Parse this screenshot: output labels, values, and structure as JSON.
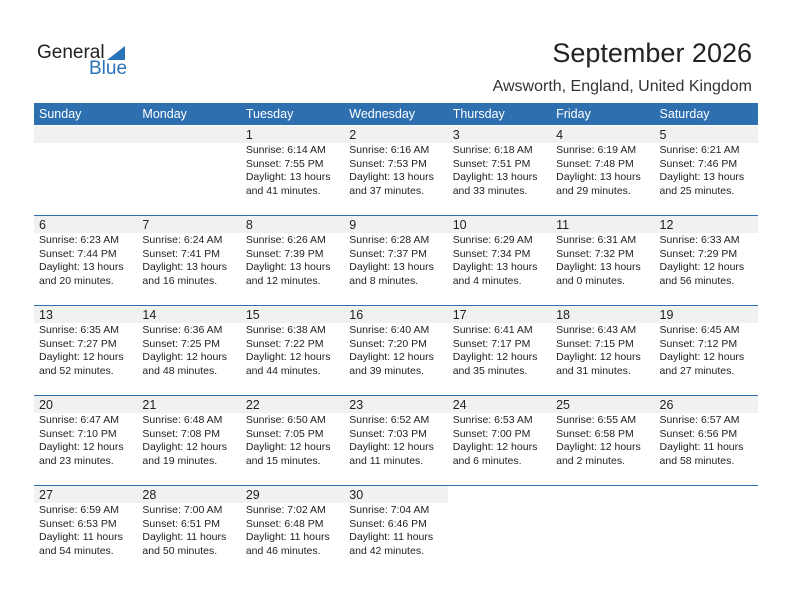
{
  "logo": {
    "text1": "General",
    "text2": "Blue"
  },
  "title": "September 2026",
  "location": "Awsworth, England, United Kingdom",
  "colors": {
    "accent": "#2e6fb0",
    "date_row": "#f1f1f1"
  },
  "days": [
    "Sunday",
    "Monday",
    "Tuesday",
    "Wednesday",
    "Thursday",
    "Friday",
    "Saturday"
  ],
  "weeks": [
    [
      null,
      null,
      {
        "d": "1",
        "sr": "Sunrise: 6:14 AM",
        "ss": "Sunset: 7:55 PM",
        "dl": "Daylight: 13 hours",
        "dm": "and 41 minutes."
      },
      {
        "d": "2",
        "sr": "Sunrise: 6:16 AM",
        "ss": "Sunset: 7:53 PM",
        "dl": "Daylight: 13 hours",
        "dm": "and 37 minutes."
      },
      {
        "d": "3",
        "sr": "Sunrise: 6:18 AM",
        "ss": "Sunset: 7:51 PM",
        "dl": "Daylight: 13 hours",
        "dm": "and 33 minutes."
      },
      {
        "d": "4",
        "sr": "Sunrise: 6:19 AM",
        "ss": "Sunset: 7:48 PM",
        "dl": "Daylight: 13 hours",
        "dm": "and 29 minutes."
      },
      {
        "d": "5",
        "sr": "Sunrise: 6:21 AM",
        "ss": "Sunset: 7:46 PM",
        "dl": "Daylight: 13 hours",
        "dm": "and 25 minutes."
      }
    ],
    [
      {
        "d": "6",
        "sr": "Sunrise: 6:23 AM",
        "ss": "Sunset: 7:44 PM",
        "dl": "Daylight: 13 hours",
        "dm": "and 20 minutes."
      },
      {
        "d": "7",
        "sr": "Sunrise: 6:24 AM",
        "ss": "Sunset: 7:41 PM",
        "dl": "Daylight: 13 hours",
        "dm": "and 16 minutes."
      },
      {
        "d": "8",
        "sr": "Sunrise: 6:26 AM",
        "ss": "Sunset: 7:39 PM",
        "dl": "Daylight: 13 hours",
        "dm": "and 12 minutes."
      },
      {
        "d": "9",
        "sr": "Sunrise: 6:28 AM",
        "ss": "Sunset: 7:37 PM",
        "dl": "Daylight: 13 hours",
        "dm": "and 8 minutes."
      },
      {
        "d": "10",
        "sr": "Sunrise: 6:29 AM",
        "ss": "Sunset: 7:34 PM",
        "dl": "Daylight: 13 hours",
        "dm": "and 4 minutes."
      },
      {
        "d": "11",
        "sr": "Sunrise: 6:31 AM",
        "ss": "Sunset: 7:32 PM",
        "dl": "Daylight: 13 hours",
        "dm": "and 0 minutes."
      },
      {
        "d": "12",
        "sr": "Sunrise: 6:33 AM",
        "ss": "Sunset: 7:29 PM",
        "dl": "Daylight: 12 hours",
        "dm": "and 56 minutes."
      }
    ],
    [
      {
        "d": "13",
        "sr": "Sunrise: 6:35 AM",
        "ss": "Sunset: 7:27 PM",
        "dl": "Daylight: 12 hours",
        "dm": "and 52 minutes."
      },
      {
        "d": "14",
        "sr": "Sunrise: 6:36 AM",
        "ss": "Sunset: 7:25 PM",
        "dl": "Daylight: 12 hours",
        "dm": "and 48 minutes."
      },
      {
        "d": "15",
        "sr": "Sunrise: 6:38 AM",
        "ss": "Sunset: 7:22 PM",
        "dl": "Daylight: 12 hours",
        "dm": "and 44 minutes."
      },
      {
        "d": "16",
        "sr": "Sunrise: 6:40 AM",
        "ss": "Sunset: 7:20 PM",
        "dl": "Daylight: 12 hours",
        "dm": "and 39 minutes."
      },
      {
        "d": "17",
        "sr": "Sunrise: 6:41 AM",
        "ss": "Sunset: 7:17 PM",
        "dl": "Daylight: 12 hours",
        "dm": "and 35 minutes."
      },
      {
        "d": "18",
        "sr": "Sunrise: 6:43 AM",
        "ss": "Sunset: 7:15 PM",
        "dl": "Daylight: 12 hours",
        "dm": "and 31 minutes."
      },
      {
        "d": "19",
        "sr": "Sunrise: 6:45 AM",
        "ss": "Sunset: 7:12 PM",
        "dl": "Daylight: 12 hours",
        "dm": "and 27 minutes."
      }
    ],
    [
      {
        "d": "20",
        "sr": "Sunrise: 6:47 AM",
        "ss": "Sunset: 7:10 PM",
        "dl": "Daylight: 12 hours",
        "dm": "and 23 minutes."
      },
      {
        "d": "21",
        "sr": "Sunrise: 6:48 AM",
        "ss": "Sunset: 7:08 PM",
        "dl": "Daylight: 12 hours",
        "dm": "and 19 minutes."
      },
      {
        "d": "22",
        "sr": "Sunrise: 6:50 AM",
        "ss": "Sunset: 7:05 PM",
        "dl": "Daylight: 12 hours",
        "dm": "and 15 minutes."
      },
      {
        "d": "23",
        "sr": "Sunrise: 6:52 AM",
        "ss": "Sunset: 7:03 PM",
        "dl": "Daylight: 12 hours",
        "dm": "and 11 minutes."
      },
      {
        "d": "24",
        "sr": "Sunrise: 6:53 AM",
        "ss": "Sunset: 7:00 PM",
        "dl": "Daylight: 12 hours",
        "dm": "and 6 minutes."
      },
      {
        "d": "25",
        "sr": "Sunrise: 6:55 AM",
        "ss": "Sunset: 6:58 PM",
        "dl": "Daylight: 12 hours",
        "dm": "and 2 minutes."
      },
      {
        "d": "26",
        "sr": "Sunrise: 6:57 AM",
        "ss": "Sunset: 6:56 PM",
        "dl": "Daylight: 11 hours",
        "dm": "and 58 minutes."
      }
    ],
    [
      {
        "d": "27",
        "sr": "Sunrise: 6:59 AM",
        "ss": "Sunset: 6:53 PM",
        "dl": "Daylight: 11 hours",
        "dm": "and 54 minutes."
      },
      {
        "d": "28",
        "sr": "Sunrise: 7:00 AM",
        "ss": "Sunset: 6:51 PM",
        "dl": "Daylight: 11 hours",
        "dm": "and 50 minutes."
      },
      {
        "d": "29",
        "sr": "Sunrise: 7:02 AM",
        "ss": "Sunset: 6:48 PM",
        "dl": "Daylight: 11 hours",
        "dm": "and 46 minutes."
      },
      {
        "d": "30",
        "sr": "Sunrise: 7:04 AM",
        "ss": "Sunset: 6:46 PM",
        "dl": "Daylight: 11 hours",
        "dm": "and 42 minutes."
      },
      null,
      null,
      null
    ]
  ]
}
